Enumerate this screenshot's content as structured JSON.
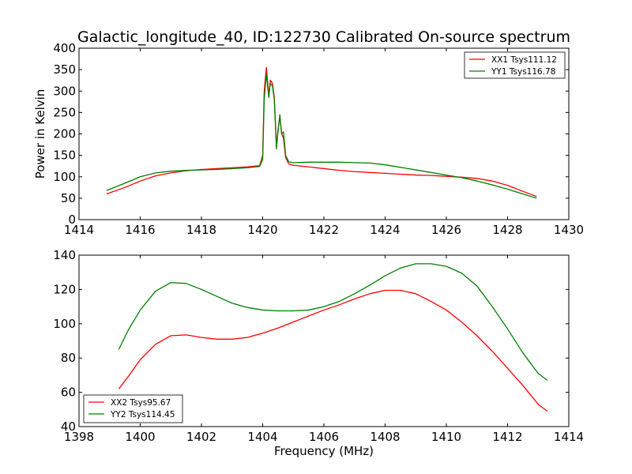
{
  "figure": {
    "title": "Galactic_longitude_40, ID:122730 Calibrated On-source spectrum"
  },
  "chart_data": [
    {
      "type": "line",
      "panel": "top",
      "title": "Galactic_longitude_40, ID:122730 Calibrated On-source spectrum",
      "xlabel": "",
      "ylabel": "Power in Kelvin",
      "xlim": [
        1414,
        1430
      ],
      "ylim": [
        0,
        400
      ],
      "xticks": [
        1414,
        1416,
        1418,
        1420,
        1422,
        1424,
        1426,
        1428,
        1430
      ],
      "yticks": [
        0,
        50,
        100,
        150,
        200,
        250,
        300,
        350,
        400
      ],
      "grid": false,
      "legend_position": "top-right",
      "series": [
        {
          "name": "XX1 Tsys111.12",
          "color": "#ff0000",
          "x": [
            1414.9,
            1415.5,
            1416,
            1416.5,
            1417,
            1417.5,
            1418,
            1418.5,
            1419,
            1419.5,
            1419.9,
            1420.0,
            1420.05,
            1420.12,
            1420.2,
            1420.25,
            1420.32,
            1420.38,
            1420.45,
            1420.5,
            1420.56,
            1420.62,
            1420.68,
            1420.75,
            1420.85,
            1421,
            1421.5,
            1422,
            1422.5,
            1423,
            1423.5,
            1424,
            1424.5,
            1425,
            1425.5,
            1426,
            1426.5,
            1427,
            1427.5,
            1428,
            1428.5,
            1428.95
          ],
          "values": [
            60,
            75,
            90,
            102,
            109,
            114,
            117,
            119,
            121,
            123,
            126,
            150,
            300,
            355,
            290,
            325,
            318,
            285,
            170,
            210,
            240,
            200,
            190,
            145,
            130,
            127,
            123,
            119,
            115,
            112,
            110,
            108,
            106,
            104,
            103,
            101,
            99,
            96,
            90,
            80,
            66,
            54
          ]
        },
        {
          "name": "YY1 Tsys116.78",
          "color": "#008000",
          "x": [
            1414.9,
            1415.5,
            1416,
            1416.5,
            1417,
            1417.5,
            1418,
            1418.5,
            1419,
            1419.5,
            1419.9,
            1420.0,
            1420.05,
            1420.12,
            1420.2,
            1420.25,
            1420.32,
            1420.38,
            1420.45,
            1420.5,
            1420.56,
            1420.62,
            1420.68,
            1420.75,
            1420.85,
            1421,
            1421.5,
            1422,
            1422.5,
            1423,
            1423.5,
            1424,
            1424.5,
            1425,
            1425.5,
            1426,
            1426.5,
            1427,
            1427.5,
            1428,
            1428.5,
            1428.95
          ],
          "values": [
            68,
            85,
            100,
            109,
            113,
            115,
            116,
            117,
            119,
            121,
            124,
            140,
            280,
            340,
            285,
            318,
            312,
            280,
            165,
            205,
            245,
            200,
            205,
            150,
            135,
            133,
            134,
            134,
            134,
            133,
            132,
            128,
            122,
            116,
            110,
            104,
            98,
            90,
            81,
            71,
            60,
            50
          ]
        }
      ]
    },
    {
      "type": "line",
      "panel": "bottom",
      "xlabel": "Frequency (MHz)",
      "ylabel": "",
      "xlim": [
        1398,
        1414
      ],
      "ylim": [
        40,
        140
      ],
      "xticks": [
        1398,
        1400,
        1402,
        1404,
        1406,
        1408,
        1410,
        1412,
        1414
      ],
      "yticks": [
        40,
        60,
        80,
        100,
        120,
        140
      ],
      "grid": false,
      "legend_position": "bottom-left",
      "series": [
        {
          "name": "XX2 Tsys95.67",
          "color": "#ff0000",
          "x": [
            1399.3,
            1399.6,
            1400,
            1400.5,
            1401,
            1401.5,
            1402,
            1402.5,
            1403,
            1403.5,
            1404,
            1404.5,
            1405,
            1405.5,
            1406,
            1406.5,
            1407,
            1407.5,
            1408,
            1408.5,
            1409,
            1409.5,
            1410,
            1410.5,
            1411,
            1411.5,
            1412,
            1412.5,
            1413,
            1413.3
          ],
          "values": [
            62,
            69,
            79,
            88,
            93,
            93.5,
            92,
            91,
            91,
            92,
            94.5,
            97.5,
            101,
            104.5,
            108,
            111,
            114.5,
            117.5,
            119.5,
            119.5,
            117.5,
            113,
            108,
            101,
            93,
            84,
            74,
            64,
            53,
            49
          ]
        },
        {
          "name": "YY2 Tsys114.45",
          "color": "#008000",
          "x": [
            1399.3,
            1399.6,
            1400,
            1400.5,
            1401,
            1401.5,
            1402,
            1402.5,
            1403,
            1403.5,
            1404,
            1404.5,
            1405,
            1405.5,
            1406,
            1406.5,
            1407,
            1407.5,
            1408,
            1408.5,
            1409,
            1409.5,
            1410,
            1410.5,
            1411,
            1411.5,
            1412,
            1412.5,
            1413,
            1413.3
          ],
          "values": [
            85,
            96,
            108,
            119,
            124,
            123.5,
            120,
            116,
            112,
            109.5,
            108,
            107.5,
            107.5,
            108,
            110,
            113,
            117.5,
            122.5,
            128,
            132.5,
            135,
            135,
            133.5,
            129.5,
            122,
            110,
            97,
            83,
            71,
            67
          ]
        }
      ]
    }
  ]
}
